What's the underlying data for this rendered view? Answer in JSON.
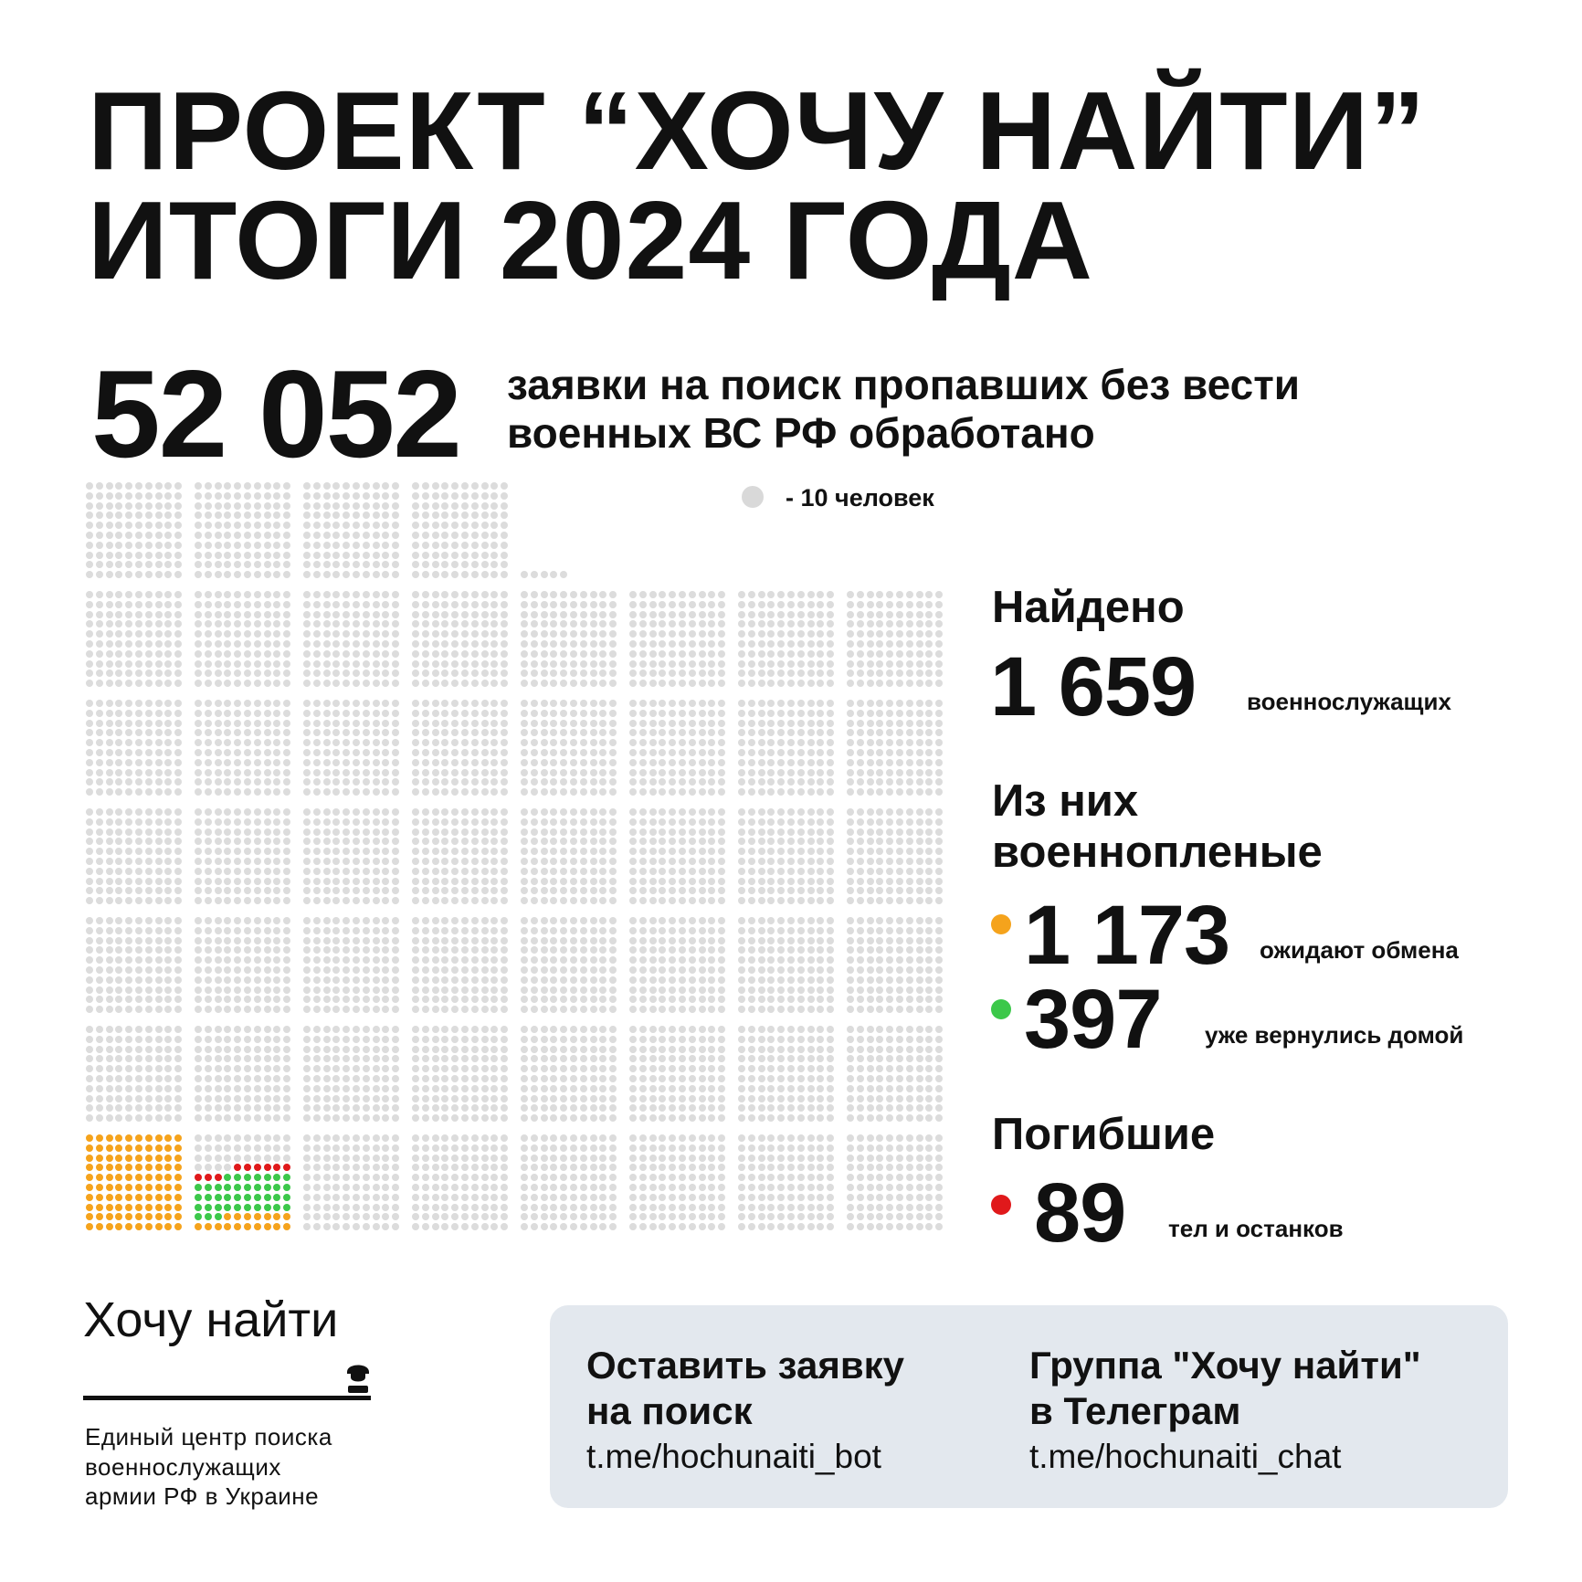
{
  "title": {
    "line1": "ПРОЕКТ “ХОЧУ НАЙТИ”",
    "line2": "ИТОГИ 2024 ГОДА"
  },
  "total": {
    "value": "52 052",
    "caption_line1": "заявки на поиск пропавших без вести",
    "caption_line2": "военных ВС РФ обработано"
  },
  "legend": {
    "text": "- 10 человек",
    "dot_color": "#d9d9d9",
    "people_per_dot": 10
  },
  "found": {
    "heading": "Найдено",
    "value": "1 659",
    "label": "военнослужащих"
  },
  "pow": {
    "heading_line1": "Из них",
    "heading_line2": "военнопленые",
    "awaiting": {
      "value": "1 173",
      "label": "ожидают обмена",
      "color": "#f5a31c"
    },
    "returned": {
      "value": "397",
      "label": "уже вернулись домой",
      "color": "#3cc84a"
    }
  },
  "dead": {
    "heading": "Погибшие",
    "value": "89",
    "label": "тел и останков",
    "color": "#e0191b"
  },
  "chart_data": {
    "type": "waffle",
    "unit": "1 dot = 10 people",
    "total": 52052,
    "series": [
      {
        "name": "ожидают обмена",
        "value": 1173,
        "color": "#f5a31c"
      },
      {
        "name": "уже вернулись домой",
        "value": 397,
        "color": "#3cc84a"
      },
      {
        "name": "тел и останков",
        "value": 89,
        "color": "#e0191b"
      }
    ],
    "base_color": "#dcdcdc"
  },
  "logo": {
    "name": "Хочу найти",
    "icon": "soldier-helmet-icon",
    "org_line1": "Единый центр поиска",
    "org_line2": "военнослужащих",
    "org_line3": "армии РФ в Украине"
  },
  "card": {
    "request": {
      "title_line1": "Оставить заявку",
      "title_line2": "на поиск",
      "link": "t.me/hochunaiti_bot"
    },
    "group": {
      "title_line1": "Группа \"Хочу найти\"",
      "title_line2": "в Телеграм",
      "link": "t.me/hochunaiti_chat"
    }
  }
}
